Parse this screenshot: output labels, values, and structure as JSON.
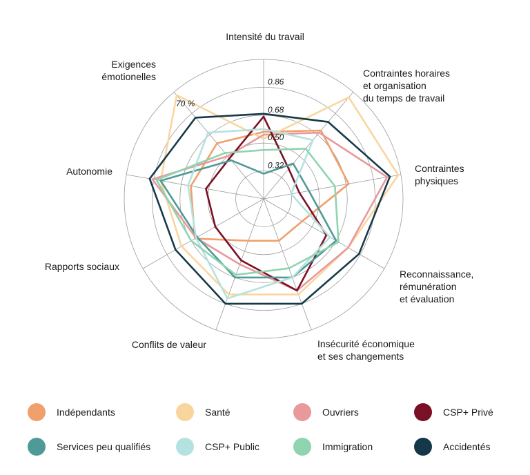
{
  "chart_data": {
    "type": "radar",
    "axes": [
      [
        "Intensité du travail"
      ],
      [
        "Contraintes horaires",
        "et organisation",
        "du temps de travail"
      ],
      [
        "Contraintes",
        "physiques"
      ],
      [
        "Reconnaissance,",
        "rémunération",
        "et évaluation"
      ],
      [
        "Insécurité économique",
        "et ses changements"
      ],
      [
        "Conflits de valeur"
      ],
      [
        "Rapports sociaux"
      ],
      [
        "Autonomie"
      ],
      [
        "Exigences",
        "émotionelles"
      ]
    ],
    "tick_labels": [
      "0.32",
      "0.50",
      "0.68",
      "0.86"
    ],
    "extra_label": "70 %",
    "series": [
      {
        "name": "Indépendants",
        "color": "#f0a06b",
        "values": [
          0.48,
          0.64,
          0.62,
          0.32,
          0.32,
          0.32,
          0.57,
          0.53,
          0.52
        ]
      },
      {
        "name": "Santé",
        "color": "#f9d69e",
        "values": [
          0.43,
          0.95,
          0.98,
          0.7,
          0.73,
          0.73,
          0.68,
          0.75,
          0.97
        ]
      },
      {
        "name": "Ouvriers",
        "color": "#e8999b",
        "values": [
          0.46,
          0.62,
          0.9,
          0.7,
          0.7,
          0.5,
          0.56,
          0.81,
          0.4
        ]
      },
      {
        "name": "CSP+ Privé",
        "color": "#7a1126",
        "values": [
          0.59,
          0.28,
          0.26,
          0.52,
          0.7,
          0.47,
          0.4,
          0.42,
          0.38
        ]
      },
      {
        "name": "Services peu qualifiés",
        "color": "#4e9a97",
        "values": [
          0.18,
          0.33,
          0.33,
          0.6,
          0.6,
          0.6,
          0.55,
          0.75,
          0.36
        ]
      },
      {
        "name": "CSP+ Public",
        "color": "#b4e2e0",
        "values": [
          0.5,
          0.55,
          0.2,
          0.55,
          0.6,
          0.76,
          0.56,
          0.55,
          0.62
        ]
      },
      {
        "name": "Immigration",
        "color": "#8fd4b0",
        "values": [
          0.35,
          0.47,
          0.52,
          0.62,
          0.53,
          0.58,
          0.6,
          0.78,
          0.43
        ]
      },
      {
        "name": "Accidentés",
        "color": "#163949",
        "values": [
          0.61,
          0.72,
          0.92,
          0.79,
          0.8,
          0.8,
          0.73,
          0.83,
          0.76
        ]
      }
    ]
  }
}
